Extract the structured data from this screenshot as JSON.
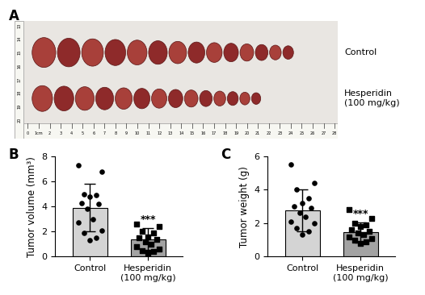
{
  "photo": {
    "panel_label": "A",
    "rows": [
      {
        "label": "Control",
        "count": 14
      },
      {
        "label": "Hesperidin (100 mg/kg)",
        "count": 14
      }
    ],
    "bottom_ruler": [
      "0",
      "1cm",
      "2",
      "3",
      "4",
      "5",
      "6",
      "7",
      "8",
      "9",
      "10",
      "11",
      "12",
      "13",
      "14",
      "15",
      "16",
      "17",
      "18",
      "19",
      "20",
      "21",
      "22",
      "23",
      "24",
      "25",
      "26",
      "27",
      "28"
    ],
    "left_ruler": [
      "13",
      "14",
      "15",
      "16",
      "17",
      "18",
      "19",
      "20"
    ]
  },
  "chart_data": [
    {
      "type": "bar",
      "panel_label": "B",
      "y_label": "Tumor volume (mm³)",
      "categories": [
        "Control",
        "Hesperidin (100 mg/kg)"
      ],
      "values": [
        3.9,
        1.4
      ],
      "errors": [
        1.9,
        0.85
      ],
      "colors": [
        "#d4d4d4",
        "#a3a3a3"
      ],
      "points": [
        [
          7.3,
          6.8,
          5.0,
          4.9,
          4.8,
          4.3,
          4.2,
          3.8,
          3.0,
          2.7,
          2.1,
          1.9,
          1.5,
          1.3
        ],
        [
          2.6,
          2.4,
          2.0,
          1.9,
          1.6,
          1.5,
          1.4,
          1.2,
          1.0,
          0.8,
          0.6,
          0.5,
          0.4,
          0.3
        ]
      ],
      "annotations": [
        {
          "category": "Hesperidin (100 mg/kg)",
          "text": "***"
        }
      ],
      "ylim": [
        0,
        8
      ],
      "yticks": [
        0,
        2,
        4,
        6,
        8
      ]
    },
    {
      "type": "bar",
      "panel_label": "C",
      "y_label": "Tumor weight (g)",
      "categories": [
        "Control",
        "Hesperidin (100 mg/kg)"
      ],
      "values": [
        2.75,
        1.45
      ],
      "errors": [
        1.25,
        0.6
      ],
      "colors": [
        "#d4d4d4",
        "#a3a3a3"
      ],
      "points": [
        [
          5.5,
          4.4,
          4.0,
          3.5,
          3.2,
          3.0,
          2.9,
          2.6,
          2.4,
          2.1,
          2.0,
          1.7,
          1.5,
          1.3
        ],
        [
          2.8,
          2.3,
          2.0,
          1.9,
          1.8,
          1.6,
          1.5,
          1.4,
          1.3,
          1.2,
          1.1,
          1.0,
          0.9,
          0.8
        ]
      ],
      "annotations": [
        {
          "category": "Hesperidin (100 mg/kg)",
          "text": "***"
        }
      ],
      "ylim": [
        0,
        6
      ],
      "yticks": [
        0,
        2,
        4,
        6
      ]
    }
  ]
}
